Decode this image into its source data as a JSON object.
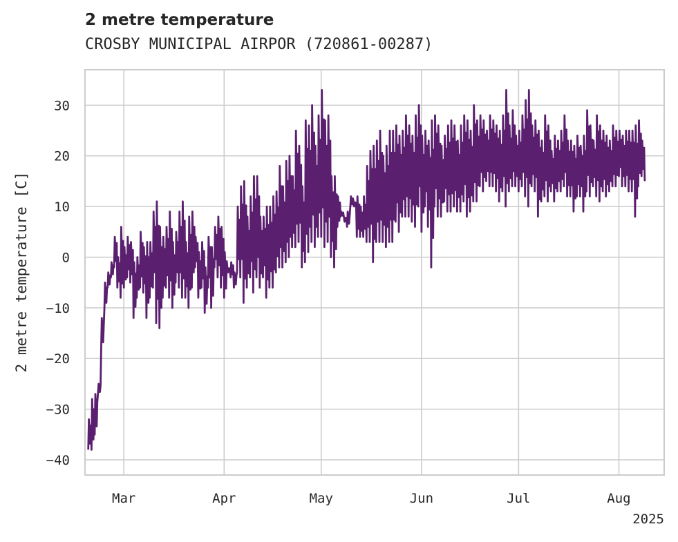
{
  "chart_data": {
    "type": "line",
    "title": "2 metre temperature",
    "subtitle": "CROSBY MUNICIPAL AIRPOR (720861-00287)",
    "ylabel": "2 metre temperature [C]",
    "xlabel": "",
    "x_year_label": "2025",
    "ylim": [
      -43,
      37
    ],
    "xlim": [
      "2025-02-17",
      "2025-08-15"
    ],
    "yticks": [
      -40,
      -30,
      -20,
      -10,
      0,
      10,
      20,
      30
    ],
    "xticks": [
      {
        "date": "2025-03-01",
        "label": "Mar"
      },
      {
        "date": "2025-04-01",
        "label": "Apr"
      },
      {
        "date": "2025-05-01",
        "label": "May"
      },
      {
        "date": "2025-06-01",
        "label": "Jun"
      },
      {
        "date": "2025-07-01",
        "label": "Jul"
      },
      {
        "date": "2025-08-01",
        "label": "Aug"
      }
    ],
    "grid": true,
    "line_color": "#5a1f6e",
    "series": [
      {
        "name": "",
        "x": [
          "2025-02-18",
          "2025-02-19",
          "2025-02-20",
          "2025-02-21",
          "2025-02-22",
          "2025-02-23",
          "2025-02-24",
          "2025-02-25",
          "2025-02-26",
          "2025-02-27",
          "2025-02-28",
          "2025-03-01",
          "2025-03-02",
          "2025-03-03",
          "2025-03-04",
          "2025-03-05",
          "2025-03-06",
          "2025-03-07",
          "2025-03-08",
          "2025-03-09",
          "2025-03-10",
          "2025-03-11",
          "2025-03-12",
          "2025-03-13",
          "2025-03-14",
          "2025-03-15",
          "2025-03-16",
          "2025-03-17",
          "2025-03-18",
          "2025-03-19",
          "2025-03-20",
          "2025-03-21",
          "2025-03-22",
          "2025-03-23",
          "2025-03-24",
          "2025-03-25",
          "2025-03-26",
          "2025-03-27",
          "2025-03-28",
          "2025-03-29",
          "2025-03-30",
          "2025-03-31",
          "2025-04-01",
          "2025-04-02",
          "2025-04-03",
          "2025-04-04",
          "2025-04-05",
          "2025-04-06",
          "2025-04-07",
          "2025-04-08",
          "2025-04-09",
          "2025-04-10",
          "2025-04-11",
          "2025-04-12",
          "2025-04-13",
          "2025-04-14",
          "2025-04-15",
          "2025-04-16",
          "2025-04-17",
          "2025-04-18",
          "2025-04-19",
          "2025-04-20",
          "2025-04-21",
          "2025-04-22",
          "2025-04-23",
          "2025-04-24",
          "2025-04-25",
          "2025-04-26",
          "2025-04-27",
          "2025-04-28",
          "2025-04-29",
          "2025-04-30",
          "2025-05-01",
          "2025-05-02",
          "2025-05-03",
          "2025-05-04",
          "2025-05-05",
          "2025-05-06",
          "2025-05-07",
          "2025-05-08",
          "2025-05-09",
          "2025-05-10",
          "2025-05-11",
          "2025-05-12",
          "2025-05-13",
          "2025-05-14",
          "2025-05-15",
          "2025-05-16",
          "2025-05-17",
          "2025-05-18",
          "2025-05-19",
          "2025-05-20",
          "2025-05-21",
          "2025-05-22",
          "2025-05-23",
          "2025-05-24",
          "2025-05-25",
          "2025-05-26",
          "2025-05-27",
          "2025-05-28",
          "2025-05-29",
          "2025-05-30",
          "2025-05-31",
          "2025-06-01",
          "2025-06-02",
          "2025-06-03",
          "2025-06-04",
          "2025-06-05",
          "2025-06-06",
          "2025-06-07",
          "2025-06-08",
          "2025-06-09",
          "2025-06-10",
          "2025-06-11",
          "2025-06-12",
          "2025-06-13",
          "2025-06-14",
          "2025-06-15",
          "2025-06-16",
          "2025-06-17",
          "2025-06-18",
          "2025-06-19",
          "2025-06-20",
          "2025-06-21",
          "2025-06-22",
          "2025-06-23",
          "2025-06-24",
          "2025-06-25",
          "2025-06-26",
          "2025-06-27",
          "2025-06-28",
          "2025-06-29",
          "2025-06-30",
          "2025-07-01",
          "2025-07-02",
          "2025-07-03",
          "2025-07-04",
          "2025-07-05",
          "2025-07-06",
          "2025-07-07",
          "2025-07-08",
          "2025-07-09",
          "2025-07-10",
          "2025-07-11",
          "2025-07-12",
          "2025-07-13",
          "2025-07-14",
          "2025-07-15",
          "2025-07-16",
          "2025-07-17",
          "2025-07-18",
          "2025-07-19",
          "2025-07-20",
          "2025-07-21",
          "2025-07-22",
          "2025-07-23",
          "2025-07-24",
          "2025-07-25",
          "2025-07-26",
          "2025-07-27",
          "2025-07-28",
          "2025-07-29",
          "2025-07-30",
          "2025-07-31",
          "2025-08-01",
          "2025-08-02",
          "2025-08-03",
          "2025-08-04",
          "2025-08-05",
          "2025-08-06",
          "2025-08-07",
          "2025-08-08",
          "2025-08-09",
          "2025-08-10",
          "2025-08-11",
          "2025-08-12",
          "2025-08-13",
          "2025-08-14"
        ],
        "y_min": [
          -38,
          -38,
          -35,
          -27,
          -18,
          -10,
          -6,
          -4,
          -2,
          -6,
          -8,
          -6,
          -4,
          -5,
          -12,
          -8,
          -6,
          -7,
          -12,
          -8,
          -6,
          -13,
          -14,
          -8,
          -6,
          -8,
          -10,
          -5,
          -6,
          -8,
          -8,
          -10,
          -6,
          -2,
          -8,
          -6,
          -11,
          -6,
          -10,
          -2,
          -4,
          -6,
          -8,
          -2,
          -4,
          -6,
          -3,
          -4,
          -9,
          -6,
          -4,
          -7,
          -4,
          -6,
          -4,
          -8,
          -6,
          -6,
          -3,
          -2,
          -2,
          -1,
          0,
          2,
          2,
          3,
          -2,
          -1,
          1,
          3,
          2,
          4,
          4,
          2,
          3,
          0,
          -2,
          6,
          8,
          8,
          6,
          10,
          11,
          4,
          4,
          4,
          3,
          3,
          -1,
          3,
          3,
          3,
          2,
          3,
          3,
          7,
          5,
          8,
          8,
          8,
          7,
          6,
          10,
          5,
          10,
          6,
          -2,
          10,
          8,
          8,
          11,
          9,
          9,
          10,
          9,
          9,
          11,
          8,
          9,
          11,
          11,
          14,
          13,
          15,
          14,
          14,
          13,
          11,
          13,
          10,
          13,
          14,
          14,
          13,
          14,
          12,
          10,
          14,
          13,
          8,
          11,
          12,
          11,
          13,
          11,
          13,
          13,
          14,
          12,
          12,
          9,
          12,
          12,
          9,
          13,
          12,
          14,
          12,
          11,
          13,
          12,
          13,
          14,
          14,
          16,
          14,
          14,
          13,
          13,
          8,
          14,
          16,
          15,
          14,
          15,
          14,
          14,
          15,
          13,
          13,
          14,
          12
        ],
        "y_max": [
          -32,
          -28,
          -27,
          -25,
          -12,
          -5,
          -3,
          -1,
          4,
          0,
          6,
          2,
          4,
          3,
          -1,
          0,
          5,
          2,
          3,
          3,
          9,
          11,
          6,
          4,
          6,
          9,
          3,
          5,
          9,
          11,
          3,
          8,
          9,
          4,
          1,
          3,
          -2,
          4,
          2,
          6,
          8,
          6,
          1,
          -3,
          -1,
          -3,
          10,
          14,
          15,
          8,
          12,
          16,
          16,
          8,
          8,
          10,
          10,
          12,
          13,
          18,
          14,
          19,
          20,
          16,
          25,
          22,
          14,
          27,
          26,
          30,
          22,
          28,
          33,
          27,
          28,
          16,
          16,
          12,
          9,
          7,
          9,
          12,
          10,
          12,
          10,
          12,
          18,
          21,
          22,
          23,
          25,
          20,
          22,
          25,
          25,
          26,
          24,
          25,
          28,
          26,
          24,
          28,
          30,
          24,
          25,
          23,
          27,
          28,
          26,
          22,
          24,
          26,
          27,
          26,
          23,
          26,
          28,
          27,
          25,
          30,
          27,
          28,
          27,
          25,
          28,
          27,
          26,
          25,
          28,
          33,
          26,
          29,
          24,
          25,
          28,
          31,
          33,
          26,
          27,
          25,
          23,
          28,
          26,
          21,
          24,
          23,
          25,
          28,
          23,
          23,
          22,
          24,
          22,
          24,
          29,
          26,
          23,
          28,
          26,
          25,
          24,
          23,
          26,
          25,
          25,
          24,
          25,
          25,
          25,
          26,
          27,
          23
        ]
      }
    ]
  }
}
